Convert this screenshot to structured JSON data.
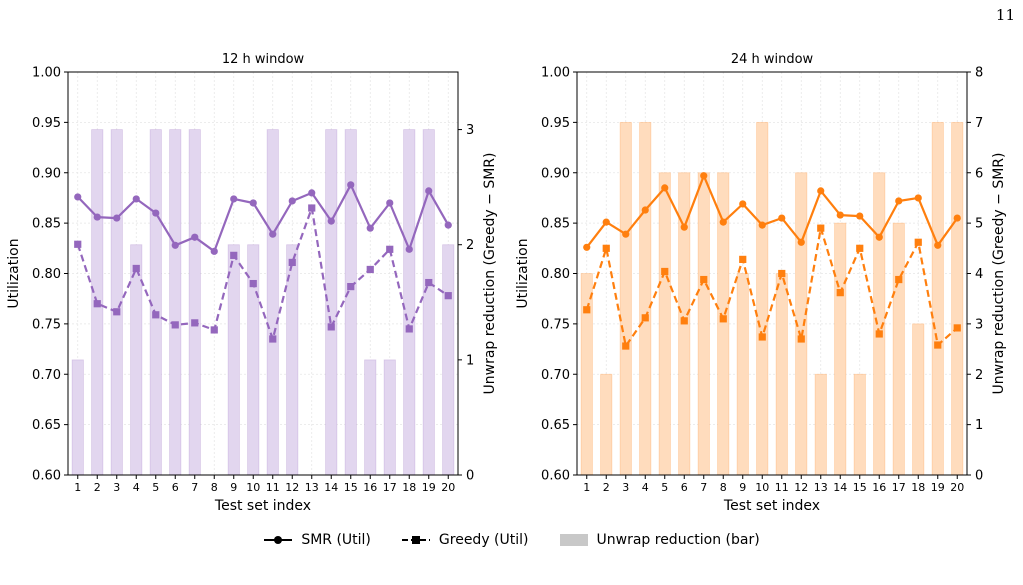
{
  "page_number": "11",
  "colors": {
    "purple": "#9467bd",
    "purple_bar": "#e2d6ef",
    "orange": "#ff7f0e",
    "orange_bar": "#ffdcbd",
    "legend_bar": "#c8c8c8"
  },
  "legend": {
    "smr": "SMR (Util)",
    "greedy": "Greedy (Util)",
    "bar": "Unwrap reduction (bar)"
  },
  "chart_data": [
    {
      "type": "line",
      "title": "12 h window",
      "xlabel": "Test set index",
      "ylabel": "Utilization",
      "y2label": "Unwrap reduction (Greedy − SMR)",
      "x": [
        1,
        2,
        3,
        4,
        5,
        6,
        7,
        8,
        9,
        10,
        11,
        12,
        13,
        14,
        15,
        16,
        17,
        18,
        19,
        20
      ],
      "ylim": [
        0.6,
        1.0
      ],
      "yticks": [
        "0.60",
        "0.65",
        "0.70",
        "0.75",
        "0.80",
        "0.85",
        "0.90",
        "0.95",
        "1.00"
      ],
      "y2lim": [
        0,
        3.5
      ],
      "y2ticks": [
        "0",
        "1",
        "2",
        "3"
      ],
      "grid": true,
      "color_key": "purple",
      "bar_color_key": "purple_bar",
      "series": [
        {
          "name": "SMR (Util)",
          "marker": "circle",
          "style": "solid",
          "values": [
            0.876,
            0.856,
            0.855,
            0.874,
            0.86,
            0.828,
            0.836,
            0.822,
            0.874,
            0.87,
            0.839,
            0.872,
            0.88,
            0.852,
            0.888,
            0.845,
            0.87,
            0.824,
            0.882,
            0.848
          ]
        },
        {
          "name": "Greedy (Util)",
          "marker": "square",
          "style": "dashed",
          "values": [
            0.829,
            0.77,
            0.762,
            0.805,
            0.759,
            0.749,
            0.751,
            0.744,
            0.818,
            0.79,
            0.735,
            0.811,
            0.865,
            0.747,
            0.787,
            0.804,
            0.824,
            0.745,
            0.791,
            0.778
          ]
        },
        {
          "name": "Unwrap reduction (bar)",
          "type": "bar",
          "axis": "y2",
          "values": [
            1,
            3,
            3,
            2,
            3,
            3,
            3,
            0,
            2,
            2,
            3,
            2,
            0,
            3,
            3,
            1,
            1,
            3,
            3,
            2
          ]
        }
      ]
    },
    {
      "type": "line",
      "title": "24 h window",
      "xlabel": "Test set index",
      "ylabel": "Utilization",
      "y2label": "Unwrap reduction (Greedy − SMR)",
      "x": [
        1,
        2,
        3,
        4,
        5,
        6,
        7,
        8,
        9,
        10,
        11,
        12,
        13,
        14,
        15,
        16,
        17,
        18,
        19,
        20
      ],
      "ylim": [
        0.6,
        1.0
      ],
      "yticks": [
        "0.60",
        "0.65",
        "0.70",
        "0.75",
        "0.80",
        "0.85",
        "0.90",
        "0.95",
        "1.00"
      ],
      "y2lim": [
        0,
        8
      ],
      "y2ticks": [
        "0",
        "1",
        "2",
        "3",
        "4",
        "5",
        "6",
        "7",
        "8"
      ],
      "grid": true,
      "color_key": "orange",
      "bar_color_key": "orange_bar",
      "series": [
        {
          "name": "SMR (Util)",
          "marker": "circle",
          "style": "solid",
          "values": [
            0.826,
            0.851,
            0.839,
            0.863,
            0.885,
            0.846,
            0.897,
            0.851,
            0.869,
            0.848,
            0.855,
            0.831,
            0.882,
            0.858,
            0.857,
            0.836,
            0.872,
            0.875,
            0.828,
            0.855
          ]
        },
        {
          "name": "Greedy (Util)",
          "marker": "square",
          "style": "dashed",
          "values": [
            0.764,
            0.825,
            0.728,
            0.756,
            0.802,
            0.753,
            0.794,
            0.755,
            0.814,
            0.737,
            0.8,
            0.735,
            0.845,
            0.781,
            0.825,
            0.74,
            0.794,
            0.831,
            0.729,
            0.746
          ]
        },
        {
          "name": "Unwrap reduction (bar)",
          "type": "bar",
          "axis": "y2",
          "values": [
            4,
            2,
            7,
            7,
            6,
            6,
            6,
            6,
            4,
            7,
            4,
            6,
            2,
            5,
            2,
            6,
            5,
            3,
            7,
            7
          ]
        }
      ]
    }
  ]
}
